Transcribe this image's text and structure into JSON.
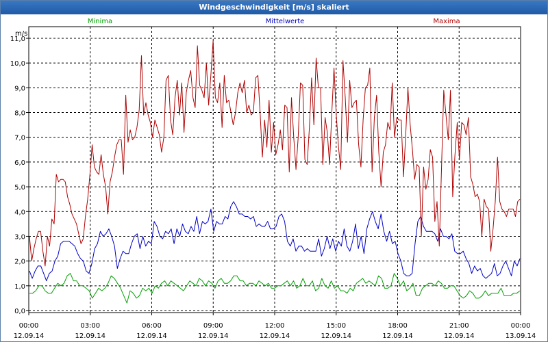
{
  "window": {
    "title": "Windgeschwindigkeit [m/s] skaliert"
  },
  "chart_data": {
    "type": "line",
    "title": "Windgeschwindigkeit [m/s] skaliert",
    "ylabel": "m/s",
    "xlabel": "",
    "ylim": [
      0,
      11.5
    ],
    "xlim": [
      0,
      24
    ],
    "grid": true,
    "yticks": [
      "0,0",
      "1,0",
      "2,0",
      "3,0",
      "4,0",
      "5,0",
      "6,0",
      "7,0",
      "8,0",
      "9,0",
      "10,0",
      "11,0"
    ],
    "ytick_values": [
      0,
      1,
      2,
      3,
      4,
      5,
      6,
      7,
      8,
      9,
      10,
      11
    ],
    "xticks": [
      {
        "x": 0,
        "time": "00:00",
        "date": "12.09.14"
      },
      {
        "x": 3,
        "time": "03:00",
        "date": "12.09.14"
      },
      {
        "x": 6,
        "time": "06:00",
        "date": "12.09.14"
      },
      {
        "x": 9,
        "time": "09:00",
        "date": "12.09.14"
      },
      {
        "x": 12,
        "time": "12:00",
        "date": "12.09.14"
      },
      {
        "x": 15,
        "time": "15:00",
        "date": "12.09.14"
      },
      {
        "x": 18,
        "time": "18:00",
        "date": "12.09.14"
      },
      {
        "x": 21,
        "time": "21:00",
        "date": "12.09.14"
      },
      {
        "x": 24,
        "time": "00:00",
        "date": "13.09.14"
      }
    ],
    "legend": [
      {
        "name": "Minima",
        "color": "#00a000",
        "position": "left"
      },
      {
        "name": "Mittelwerte",
        "color": "#0000c8",
        "position": "center"
      },
      {
        "name": "Maxima",
        "color": "#b00000",
        "position": "right"
      }
    ],
    "series": [
      {
        "name": "Minima",
        "color": "#00a000",
        "values": [
          0.7,
          0.7,
          0.8,
          1.0,
          1.0,
          0.8,
          0.7,
          0.7,
          0.9,
          1.1,
          1.0,
          1.1,
          1.4,
          1.5,
          1.2,
          1.2,
          1.0,
          1.0,
          0.9,
          0.8,
          0.5,
          0.7,
          0.9,
          0.8,
          0.9,
          1.1,
          1.4,
          1.3,
          1.1,
          0.9,
          0.6,
          0.3,
          0.8,
          0.7,
          0.5,
          0.6,
          0.9,
          0.8,
          0.9,
          0.7,
          1.0,
          0.9,
          1.1,
          1.2,
          1.0,
          1.2,
          1.1,
          1.0,
          0.9,
          0.8,
          1.0,
          1.2,
          1.1,
          1.0,
          1.3,
          1.2,
          1.0,
          1.2,
          1.1,
          0.9,
          1.2,
          1.3,
          1.1,
          1.1,
          1.2,
          1.4,
          1.4,
          1.2,
          1.2,
          1.0,
          1.1,
          1.1,
          1.0,
          1.2,
          1.1,
          1.0,
          1.1,
          0.9,
          0.9,
          1.0,
          1.0,
          1.1,
          1.2,
          1.0,
          1.2,
          0.9,
          1.0,
          1.3,
          1.0,
          1.0,
          1.2,
          0.8,
          0.9,
          1.3,
          1.0,
          0.9,
          1.2,
          0.9,
          1.0,
          0.8,
          0.8,
          0.7,
          0.9,
          0.8,
          1.1,
          1.2,
          1.3,
          1.1,
          1.2,
          1.1,
          1.0,
          1.4,
          1.3,
          0.9,
          0.9,
          1.0,
          1.5,
          1.3,
          1.0,
          1.2,
          0.8,
          0.9,
          1.1,
          0.6,
          0.6,
          0.9,
          1.0,
          1.1,
          1.1,
          1.0,
          1.2,
          1.1,
          0.9,
          0.9,
          1.0,
          1.0,
          0.8,
          0.6,
          0.5,
          0.6,
          0.8,
          0.7,
          0.5,
          0.5,
          0.6,
          0.8,
          0.6,
          0.7,
          0.7,
          0.7,
          0.9,
          0.6,
          0.6,
          0.6,
          0.7,
          0.7,
          0.8
        ]
      },
      {
        "name": "Mittelwerte",
        "color": "#0000c8",
        "values": [
          1.6,
          1.3,
          1.6,
          1.8,
          1.8,
          1.5,
          1.2,
          1.5,
          1.6,
          2.0,
          2.2,
          2.7,
          2.8,
          2.8,
          2.8,
          2.7,
          2.6,
          2.3,
          2.1,
          2.0,
          1.6,
          1.5,
          1.9,
          2.5,
          2.7,
          3.2,
          3.0,
          3.1,
          3.3,
          3.0,
          2.6,
          1.7,
          2.1,
          2.4,
          2.3,
          2.3,
          2.7,
          3.0,
          3.1,
          2.5,
          3.0,
          2.6,
          2.8,
          2.7,
          3.6,
          3.4,
          3.0,
          2.9,
          3.2,
          3.1,
          3.3,
          2.7,
          3.3,
          3.0,
          3.5,
          3.2,
          3.1,
          3.4,
          3.2,
          3.8,
          3.1,
          3.6,
          3.5,
          3.6,
          4.1,
          3.2,
          3.6,
          3.5,
          3.5,
          3.8,
          3.7,
          4.2,
          4.4,
          4.2,
          3.9,
          3.9,
          3.8,
          3.8,
          3.7,
          3.8,
          3.4,
          3.5,
          3.4,
          3.4,
          3.6,
          3.3,
          3.3,
          3.4,
          3.8,
          3.9,
          3.6,
          2.8,
          2.6,
          2.9,
          2.4,
          2.6,
          2.6,
          2.4,
          2.5,
          2.4,
          2.4,
          2.4,
          2.9,
          2.2,
          2.5,
          3.0,
          2.5,
          2.9,
          2.4,
          2.8,
          2.6,
          3.3,
          2.6,
          2.4,
          2.8,
          3.5,
          2.5,
          3.0,
          2.3,
          3.3,
          3.7,
          4.0,
          3.6,
          3.3,
          3.9,
          3.2,
          2.8,
          3.2,
          2.7,
          2.8,
          2.3,
          2.0,
          1.5,
          1.4,
          1.4,
          1.5,
          2.7,
          3.6,
          3.8,
          3.4,
          3.2,
          3.2,
          3.2,
          3.1,
          2.8,
          3.3,
          3.0,
          3.0,
          2.9,
          3.1,
          2.4,
          2.3,
          2.3,
          2.4,
          2.1,
          1.9,
          1.5,
          1.8,
          1.6,
          1.7,
          1.4,
          1.3,
          1.4,
          1.5,
          1.9,
          1.4,
          1.5,
          1.8,
          2.0,
          1.7,
          1.4,
          2.0,
          1.8,
          2.1
        ]
      },
      {
        "name": "Maxima",
        "color": "#b00000",
        "values": [
          3.0,
          2.0,
          2.5,
          2.9,
          3.2,
          3.2,
          2.4,
          1.8,
          3.0,
          2.6,
          3.7,
          3.5,
          5.5,
          5.2,
          5.3,
          5.3,
          5.2,
          4.6,
          4.3,
          3.9,
          3.7,
          3.5,
          3.1,
          2.7,
          2.9,
          3.8,
          4.5,
          5.5,
          6.7,
          5.8,
          5.6,
          5.5,
          6.3,
          5.5,
          5.0,
          3.9,
          5.2,
          5.6,
          6.2,
          6.7,
          6.9,
          6.9,
          5.5,
          8.7,
          6.8,
          7.3,
          6.9,
          7.0,
          7.4,
          8.1,
          10.3,
          7.9,
          8.4,
          7.9,
          7.6,
          7.0,
          7.7,
          7.4,
          7.1,
          6.4,
          7.0,
          9.3,
          9.5,
          7.7,
          7.1,
          8.6,
          9.3,
          7.9,
          9.2,
          7.2,
          8.8,
          9.3,
          9.7,
          8.6,
          8.2,
          10.7,
          9.1,
          8.9,
          8.6,
          10.0,
          8.3,
          9.5,
          10.9,
          8.6,
          8.4,
          9.2,
          7.4,
          9.5,
          8.4,
          8.5,
          8.0,
          7.5,
          8.0,
          8.8,
          9.2,
          8.8,
          9.3,
          8.0,
          8.3,
          7.9,
          8.0,
          9.4,
          9.5,
          8.0,
          6.2,
          7.7,
          6.6,
          8.5,
          6.4,
          7.6,
          6.3,
          6.7,
          7.3,
          6.5,
          8.3,
          8.2,
          5.6,
          8.6,
          7.0,
          5.7,
          7.0,
          9.2,
          9.1,
          6.1,
          5.9,
          7.4,
          9.4,
          7.5,
          10.2,
          9.0,
          9.0,
          5.9,
          7.8,
          7.2,
          5.9,
          8.0,
          9.8,
          7.9,
          6.6,
          5.7,
          10.1,
          8.6,
          6.8,
          9.3,
          8.2,
          8.4,
          8.5,
          6.7,
          5.8,
          7.7,
          9.0,
          9.1,
          9.8,
          5.6,
          7.8,
          8.7,
          6.4,
          5.0,
          6.4,
          6.7,
          7.6,
          7.3,
          9.2,
          7.0,
          7.8,
          7.7,
          7.7,
          5.4,
          7.1,
          9.0,
          7.5,
          6.5,
          5.3,
          5.9,
          5.8,
          3.0,
          5.8,
          4.9,
          5.3,
          6.5,
          6.2,
          3.6,
          4.4,
          2.6,
          5.8,
          8.9,
          7.9,
          6.9,
          8.9,
          4.6,
          6.3,
          7.6,
          6.1,
          7.6,
          7.5,
          7.1,
          7.8,
          5.4,
          5.1,
          4.6,
          4.7,
          4.4,
          3.0,
          4.5,
          4.2,
          4.1,
          2.4,
          3.3,
          4.4,
          6.2,
          4.4,
          4.1,
          4.0,
          3.8,
          4.1,
          4.1,
          4.1,
          3.8,
          4.4,
          4.5
        ]
      }
    ]
  }
}
